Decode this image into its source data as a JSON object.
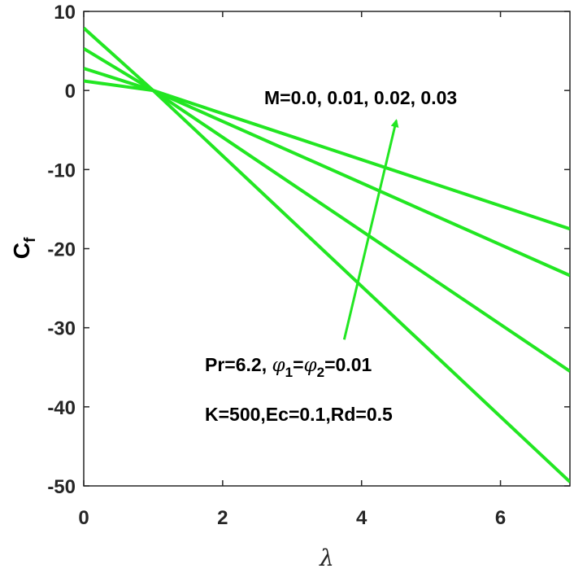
{
  "chart_data": {
    "type": "line",
    "title": "",
    "xlabel": "λ",
    "ylabel": "C",
    "ylabel_sub": "f",
    "xlim": [
      0,
      7
    ],
    "ylim": [
      -50,
      10
    ],
    "xticks": [
      0,
      2,
      4,
      6
    ],
    "yticks": [
      10,
      0,
      -10,
      -20,
      -30,
      -40,
      -50
    ],
    "xtick_labels": [
      "0",
      "2",
      "4",
      "6"
    ],
    "ytick_labels": [
      "10",
      "0",
      "-10",
      "-20",
      "-30",
      "-40",
      "-50"
    ],
    "grid": false,
    "legend": "none",
    "line_color": "#22e622",
    "series": [
      {
        "x": [
          0,
          1,
          7
        ],
        "values": [
          1.2,
          0.0,
          -17.5
        ]
      },
      {
        "x": [
          0,
          1,
          7
        ],
        "values": [
          2.8,
          0.0,
          -23.4
        ]
      },
      {
        "x": [
          0,
          1,
          7
        ],
        "values": [
          5.3,
          0.0,
          -35.5
        ]
      },
      {
        "x": [
          0,
          1,
          7
        ],
        "values": [
          7.9,
          0.0,
          -49.5
        ]
      }
    ],
    "annotations": {
      "m_label": "M=0.0, 0.01, 0.02, 0.03",
      "pr_text": "Pr=6.2, ",
      "phi_symbol": "φ",
      "phi1_sub": "1",
      "phi2_sub": "2",
      "equals": "=",
      "phi_value": "=0.01",
      "params_line": "K=500,Ec=0.1,Rd=0.5"
    },
    "arrow": {
      "from": [
        3.75,
        -31.5
      ],
      "to": [
        4.5,
        -3.8
      ]
    }
  }
}
